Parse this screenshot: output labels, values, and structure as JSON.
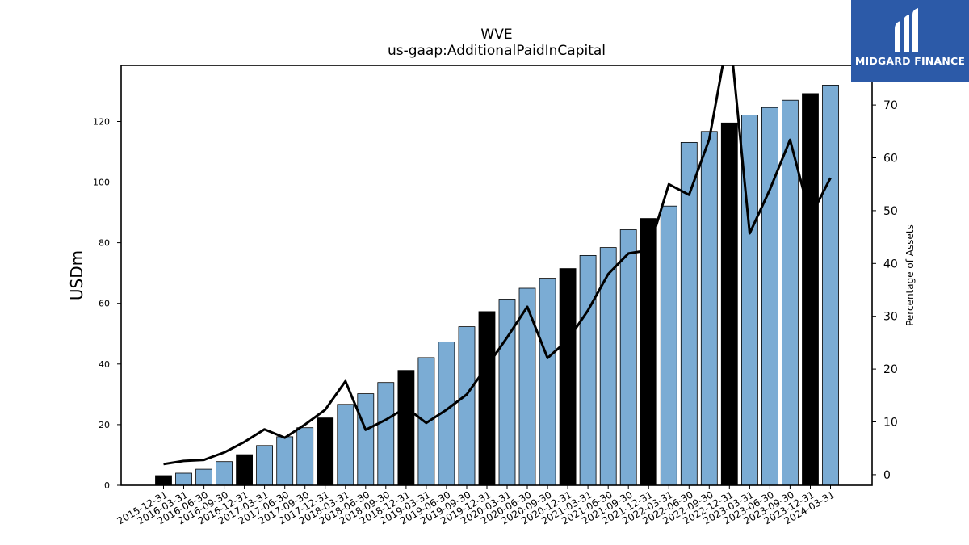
{
  "brand": {
    "name": "MIDGARD FINANCE",
    "accent": "#2c5aa8"
  },
  "chart_data": {
    "type": "bar",
    "title": "WVE",
    "subtitle": "us-gaap:AdditionalPaidInCapital",
    "ylabel": "USDm",
    "y2label": "Percentage of Assets",
    "ylim": [
      0,
      138.5
    ],
    "y2lim": [
      -2,
      77.5
    ],
    "yticks": [
      0,
      20,
      40,
      60,
      80,
      100,
      120
    ],
    "y2ticks": [
      0,
      10,
      20,
      30,
      40,
      50,
      60,
      70
    ],
    "colors": {
      "bar": "#7bacd4",
      "bar_highlight": "#000000",
      "line": "#000000"
    },
    "categories": [
      "2015-12-31",
      "2016-03-31",
      "2016-06-30",
      "2016-09-30",
      "2016-12-31",
      "2017-03-31",
      "2017-06-30",
      "2017-09-30",
      "2017-12-31",
      "2018-03-31",
      "2018-06-30",
      "2018-09-30",
      "2018-12-31",
      "2019-03-31",
      "2019-06-30",
      "2019-09-30",
      "2019-12-31",
      "2020-03-31",
      "2020-06-30",
      "2020-09-30",
      "2020-12-31",
      "2021-03-31",
      "2021-06-30",
      "2021-09-30",
      "2021-12-31",
      "2022-03-31",
      "2022-06-30",
      "2022-09-30",
      "2022-12-31",
      "2023-03-31",
      "2023-06-30",
      "2023-09-30",
      "2023-12-31",
      "2024-03-31"
    ],
    "series": [
      {
        "values": [
          3.2,
          4.0,
          5.3,
          7.8,
          10.1,
          13.1,
          16.0,
          19.0,
          22.2,
          26.7,
          30.2,
          33.9,
          37.9,
          42.1,
          47.3,
          52.3,
          57.3,
          61.4,
          65.0,
          68.3,
          71.5,
          75.8,
          78.4,
          84.3,
          88.0,
          92.1,
          113.1,
          116.7,
          119.5,
          122.1,
          124.6,
          127.0,
          129.2,
          132.0
        ],
        "highlight": [
          true,
          false,
          false,
          false,
          true,
          false,
          false,
          false,
          true,
          false,
          false,
          false,
          true,
          false,
          false,
          false,
          true,
          false,
          false,
          false,
          true,
          false,
          false,
          false,
          true,
          false,
          false,
          false,
          true,
          false,
          false,
          false,
          true,
          false
        ]
      },
      {
        "type": "line",
        "axis": "right",
        "values": [
          2.0,
          2.6,
          2.8,
          4.2,
          6.2,
          8.6,
          7.0,
          9.5,
          12.3,
          17.7,
          8.5,
          10.4,
          12.7,
          9.8,
          12.3,
          15.2,
          20.5,
          26.0,
          31.8,
          22.1,
          25.5,
          31.1,
          38.0,
          41.9,
          42.5,
          55.0,
          53.0,
          63.5,
          84.5,
          45.7,
          54.0,
          63.4,
          48.8,
          56.2
        ]
      }
    ]
  }
}
